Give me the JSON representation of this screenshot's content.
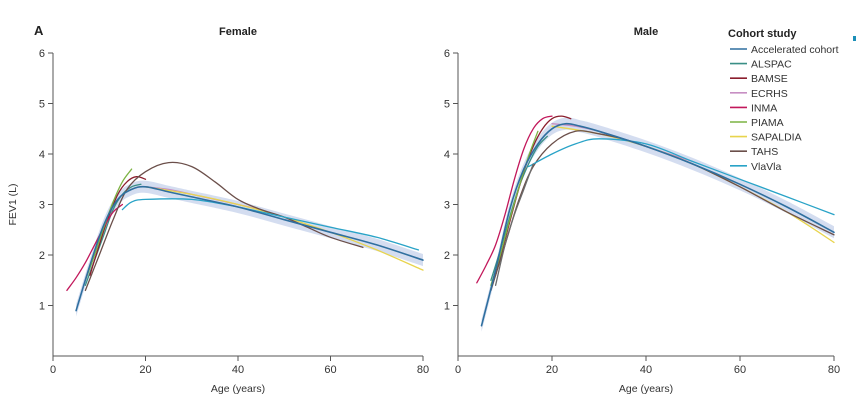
{
  "figure": {
    "panel_letter": "A"
  },
  "legend": {
    "title": "Cohort study"
  },
  "chart_data": [
    {
      "type": "line",
      "title": "Female",
      "xlabel": "Age (years)",
      "ylabel": "FEV1 (L)",
      "xlim": [
        0,
        80
      ],
      "ylim": [
        0,
        6
      ],
      "xticks": [
        0,
        20,
        40,
        60,
        80
      ],
      "yticks": [
        1,
        2,
        3,
        4,
        5,
        6
      ],
      "grid": false,
      "legend_position": "right",
      "series": [
        {
          "name": "Accelerated cohort",
          "color": "#2f6f9f",
          "x": [
            5,
            8,
            11,
            14,
            17,
            20,
            25,
            30,
            40,
            50,
            60,
            70,
            80
          ],
          "y": [
            0.9,
            1.8,
            2.6,
            3.1,
            3.3,
            3.35,
            3.25,
            3.15,
            2.95,
            2.7,
            2.45,
            2.2,
            1.9
          ]
        },
        {
          "name": "ALSPAC",
          "color": "#3a8f86",
          "x": [
            7,
            9,
            11,
            13,
            15,
            17,
            19
          ],
          "y": [
            1.4,
            1.9,
            2.4,
            2.9,
            3.2,
            3.35,
            3.4
          ]
        },
        {
          "name": "BAMSE",
          "color": "#8b1e2d",
          "x": [
            8,
            10,
            12,
            14,
            16,
            18,
            20
          ],
          "y": [
            1.6,
            2.2,
            2.75,
            3.2,
            3.45,
            3.55,
            3.5
          ]
        },
        {
          "name": "ECRHS",
          "color": "#c78fc3",
          "x": [
            20,
            25,
            30,
            35,
            40,
            45
          ],
          "y": [
            3.35,
            3.3,
            3.2,
            3.1,
            3.0,
            2.9
          ]
        },
        {
          "name": "INMA",
          "color": "#c2185b",
          "x": [
            3,
            5,
            7,
            9,
            11,
            13,
            15
          ],
          "y": [
            1.3,
            1.55,
            1.85,
            2.2,
            2.55,
            2.85,
            3.0
          ]
        },
        {
          "name": "PIAMA",
          "color": "#7cb342",
          "x": [
            7,
            9,
            11,
            13,
            15,
            17
          ],
          "y": [
            1.5,
            2.0,
            2.55,
            3.05,
            3.45,
            3.7
          ]
        },
        {
          "name": "SAPALDIA",
          "color": "#e8d44d",
          "x": [
            20,
            30,
            40,
            50,
            60,
            70,
            80
          ],
          "y": [
            3.35,
            3.2,
            3.0,
            2.75,
            2.45,
            2.1,
            1.7
          ]
        },
        {
          "name": "TAHS",
          "color": "#6b4f4a",
          "x": [
            7,
            10,
            13,
            16,
            20,
            25,
            30,
            35,
            40,
            45,
            50,
            55,
            60,
            67
          ],
          "y": [
            1.3,
            2.0,
            2.7,
            3.3,
            3.65,
            3.83,
            3.75,
            3.45,
            3.1,
            2.9,
            2.75,
            2.55,
            2.35,
            2.15
          ]
        },
        {
          "name": "VlaVla",
          "color": "#29a3c7",
          "x": [
            15,
            17,
            20,
            30,
            40,
            50,
            60,
            70,
            79
          ],
          "y": [
            2.9,
            3.05,
            3.1,
            3.1,
            2.95,
            2.75,
            2.55,
            2.35,
            2.1
          ]
        }
      ]
    },
    {
      "type": "line",
      "title": "Male",
      "xlabel": "Age (years)",
      "ylabel": "",
      "xlim": [
        0,
        80
      ],
      "ylim": [
        0,
        6
      ],
      "xticks": [
        0,
        20,
        40,
        60,
        80
      ],
      "yticks": [
        1,
        2,
        3,
        4,
        5,
        6
      ],
      "grid": false,
      "series": [
        {
          "name": "Accelerated cohort",
          "color": "#2f6f9f",
          "x": [
            5,
            8,
            11,
            14,
            17,
            20,
            23,
            26,
            30,
            40,
            50,
            60,
            70,
            80
          ],
          "y": [
            0.6,
            1.7,
            2.9,
            3.7,
            4.2,
            4.5,
            4.6,
            4.55,
            4.45,
            4.15,
            3.8,
            3.4,
            2.95,
            2.45
          ]
        },
        {
          "name": "ALSPAC",
          "color": "#3a8f86",
          "x": [
            7,
            9,
            11,
            13,
            15,
            17,
            19
          ],
          "y": [
            1.5,
            2.1,
            2.75,
            3.35,
            3.8,
            4.15,
            4.35
          ]
        },
        {
          "name": "BAMSE",
          "color": "#8b1e2d",
          "x": [
            8,
            10,
            12,
            14,
            16,
            18,
            20,
            22,
            24
          ],
          "y": [
            1.6,
            2.3,
            3.0,
            3.65,
            4.15,
            4.5,
            4.7,
            4.75,
            4.7
          ]
        },
        {
          "name": "ECRHS",
          "color": "#c78fc3",
          "x": [
            20,
            25,
            30,
            35,
            40,
            45,
            50
          ],
          "y": [
            4.6,
            4.55,
            4.45,
            4.3,
            4.15,
            4.0,
            3.85
          ]
        },
        {
          "name": "INMA",
          "color": "#c2185b",
          "x": [
            4,
            6,
            8,
            10,
            12,
            14,
            16,
            18,
            20
          ],
          "y": [
            1.45,
            1.8,
            2.2,
            2.8,
            3.5,
            4.1,
            4.5,
            4.7,
            4.75
          ]
        },
        {
          "name": "PIAMA",
          "color": "#7cb342",
          "x": [
            7,
            9,
            11,
            13,
            15,
            17
          ],
          "y": [
            1.4,
            2.0,
            2.7,
            3.35,
            3.95,
            4.45
          ]
        },
        {
          "name": "SAPALDIA",
          "color": "#e8d44d",
          "x": [
            20,
            30,
            40,
            50,
            60,
            70,
            80
          ],
          "y": [
            4.55,
            4.4,
            4.15,
            3.8,
            3.35,
            2.85,
            2.25
          ]
        },
        {
          "name": "TAHS",
          "color": "#6b4f4a",
          "x": [
            7,
            10,
            13,
            16,
            20,
            25,
            30,
            35,
            40,
            50,
            60,
            70,
            80
          ],
          "y": [
            1.3,
            2.2,
            3.1,
            3.75,
            4.2,
            4.45,
            4.4,
            4.3,
            4.15,
            3.8,
            3.35,
            2.85,
            2.4
          ]
        },
        {
          "name": "VlaVla",
          "color": "#29a3c7",
          "x": [
            15,
            20,
            25,
            30,
            40,
            50,
            60,
            70,
            80
          ],
          "y": [
            3.75,
            4.0,
            4.2,
            4.3,
            4.2,
            3.85,
            3.5,
            3.15,
            2.8
          ]
        },
        {
          "name": "",
          "color": "#6b6b6b",
          "x": [
            8,
            10,
            12,
            14,
            16
          ],
          "y": [
            1.4,
            2.2,
            2.8,
            3.3,
            3.8
          ]
        }
      ]
    }
  ]
}
